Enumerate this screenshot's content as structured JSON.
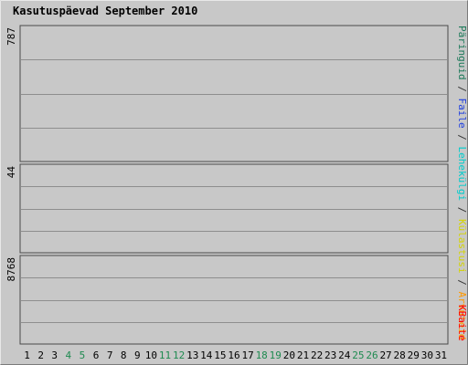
{
  "chart_data": {
    "type": "bar",
    "title": "Kasutuspäevad September 2010",
    "categories": [
      "1",
      "2",
      "3",
      "4",
      "5",
      "6",
      "7",
      "8",
      "9",
      "10",
      "11",
      "12",
      "13",
      "14",
      "15",
      "16",
      "17",
      "18",
      "19",
      "20",
      "21",
      "22",
      "23",
      "24",
      "25",
      "26",
      "27",
      "28",
      "29",
      "30",
      "31"
    ],
    "weekend_days": [
      "4",
      "5",
      "11",
      "12",
      "18",
      "19",
      "25",
      "26"
    ],
    "grid": true,
    "colors": {
      "title": "#0000cc",
      "background": "#c8c8c8",
      "frame_light": "#e8e8e8",
      "frame_dark": "#7a7a7a",
      "weekday_tick": "#000000",
      "weekend_tick": "#1e8a50",
      "gridline": "#8e8e8e",
      "panel_line": "#4a4a4a"
    },
    "panels": [
      {
        "id": "top",
        "ymax_label": "787",
        "ymax": 787,
        "series": [
          {
            "name": "Päringuid",
            "color": "#1d7a5a",
            "values": [
              0,
              0,
              0,
              0,
              0,
              0,
              0,
              0,
              0,
              0,
              0,
              0,
              0,
              0,
              0,
              0,
              0,
              0,
              0,
              0,
              0,
              0,
              0,
              0,
              0,
              0,
              0,
              0,
              0,
              0,
              0
            ]
          },
          {
            "name": "Faile",
            "color": "#1f3fe0",
            "values": [
              0,
              0,
              0,
              0,
              0,
              0,
              0,
              0,
              0,
              0,
              0,
              0,
              0,
              0,
              0,
              0,
              0,
              0,
              0,
              0,
              0,
              0,
              0,
              0,
              0,
              0,
              0,
              0,
              0,
              0,
              0
            ]
          },
          {
            "name": "Lehekülgi",
            "color": "#00e0ff",
            "values": [
              0,
              0,
              0,
              0,
              0,
              0,
              0,
              0,
              0,
              0,
              0,
              0,
              0,
              0,
              0,
              0,
              0,
              0,
              0,
              0,
              0,
              0,
              0,
              0,
              0,
              0,
              0,
              0,
              0,
              0,
              0
            ]
          }
        ]
      },
      {
        "id": "middle",
        "ymax_label": "44",
        "ymax": 44,
        "series": [
          {
            "name": "Külastusi",
            "color": "#ffff00",
            "values": [
              0,
              0,
              0,
              0,
              0,
              0,
              0,
              0,
              0,
              0,
              0,
              0,
              0,
              0,
              0,
              0,
              0,
              0,
              0,
              0,
              0,
              0,
              0,
              0,
              0,
              0,
              0,
              0,
              0,
              0,
              0
            ]
          },
          {
            "name": "Arvuteid",
            "color": "#ff9900",
            "values": [
              0,
              0,
              0,
              0,
              0,
              0,
              0,
              0,
              0,
              0,
              0,
              0,
              0,
              0,
              0,
              0,
              0,
              0,
              0,
              0,
              0,
              0,
              0,
              0,
              0,
              0,
              0,
              0,
              0,
              0,
              0
            ]
          }
        ]
      },
      {
        "id": "bottom",
        "ymax_label": "8768",
        "ymax": 8768,
        "series": [
          {
            "name": "KBaite",
            "color": "#ff0000",
            "values": [
              0,
              0,
              0,
              0,
              0,
              0,
              0,
              0,
              0,
              0,
              0,
              0,
              0,
              0,
              0,
              0,
              0,
              0,
              0,
              0,
              0,
              0,
              0,
              0,
              0,
              0,
              0,
              0,
              0,
              0,
              0
            ]
          }
        ]
      }
    ]
  },
  "legend": {
    "top": [
      {
        "text": "Päringuid",
        "color": "#1d7a5a"
      },
      {
        "text": " / ",
        "color": "#333333"
      },
      {
        "text": "Faile",
        "color": "#1f3fe0"
      },
      {
        "text": " / ",
        "color": "#333333"
      },
      {
        "text": "Lehekülgi",
        "color": "#00cccc"
      },
      {
        "text": " / ",
        "color": "#333333"
      },
      {
        "text": "Külastusi",
        "color": "#d4d400"
      },
      {
        "text": " / ",
        "color": "#333333"
      },
      {
        "text": "Arvuteid",
        "color": "#ff9900"
      }
    ],
    "bottom": [
      {
        "text": "KBaite",
        "color": "#ff0000"
      }
    ]
  }
}
